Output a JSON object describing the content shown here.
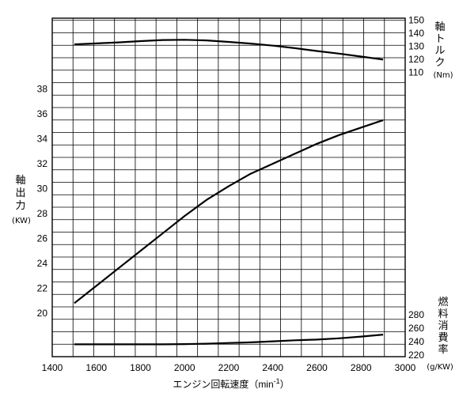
{
  "chart_data": {
    "type": "line",
    "grid": true,
    "x": {
      "label": "エンジン回転速度（min",
      "label_sup": "-1",
      "label_close": "）",
      "ticks": [
        1400,
        1600,
        1800,
        2000,
        2200,
        2400,
        2600,
        2800,
        3000
      ],
      "range": [
        1400,
        3000
      ]
    },
    "y_left": {
      "label": "軸出力",
      "unit": "(KW)",
      "ticks": [
        20,
        22,
        24,
        26,
        28,
        30,
        32,
        34,
        36,
        38
      ],
      "range": [
        18,
        42
      ]
    },
    "y_torque": {
      "label": "軸トルク",
      "unit": "(Nm)",
      "ticks": [
        110,
        120,
        130,
        140,
        150
      ],
      "range": [
        110,
        150
      ]
    },
    "y_fuel": {
      "label": "燃料消費率",
      "unit": "(g/KW)",
      "ticks": [
        220,
        240,
        260,
        280
      ],
      "range": [
        220,
        280
      ]
    },
    "series": [
      {
        "axis": "left",
        "points": [
          [
            1500,
            20.8
          ],
          [
            1600,
            22.2
          ],
          [
            1700,
            23.6
          ],
          [
            1800,
            25.0
          ],
          [
            1900,
            26.4
          ],
          [
            2000,
            27.8
          ],
          [
            2100,
            29.1
          ],
          [
            2200,
            30.2
          ],
          [
            2300,
            31.2
          ],
          [
            2400,
            32.0
          ],
          [
            2500,
            32.8
          ],
          [
            2600,
            33.6
          ],
          [
            2700,
            34.3
          ],
          [
            2800,
            34.9
          ],
          [
            2900,
            35.5
          ]
        ]
      },
      {
        "axis": "torque",
        "points": [
          [
            1500,
            131.5
          ],
          [
            1600,
            132.2
          ],
          [
            1700,
            133.0
          ],
          [
            1800,
            134.0
          ],
          [
            1900,
            134.8
          ],
          [
            2000,
            135.0
          ],
          [
            2100,
            134.5
          ],
          [
            2200,
            133.4
          ],
          [
            2300,
            132.1
          ],
          [
            2400,
            130.5
          ],
          [
            2500,
            128.6
          ],
          [
            2600,
            126.4
          ],
          [
            2700,
            124.4
          ],
          [
            2800,
            122.2
          ],
          [
            2900,
            119.9
          ]
        ]
      },
      {
        "axis": "fuel",
        "points": [
          [
            1500,
            236
          ],
          [
            1600,
            236
          ],
          [
            1700,
            236
          ],
          [
            1800,
            236
          ],
          [
            1900,
            236
          ],
          [
            2000,
            236.4
          ],
          [
            2100,
            237
          ],
          [
            2200,
            238
          ],
          [
            2300,
            239
          ],
          [
            2400,
            240.5
          ],
          [
            2500,
            242
          ],
          [
            2600,
            243
          ],
          [
            2700,
            245
          ],
          [
            2800,
            247.5
          ],
          [
            2900,
            250.5
          ]
        ]
      }
    ]
  }
}
